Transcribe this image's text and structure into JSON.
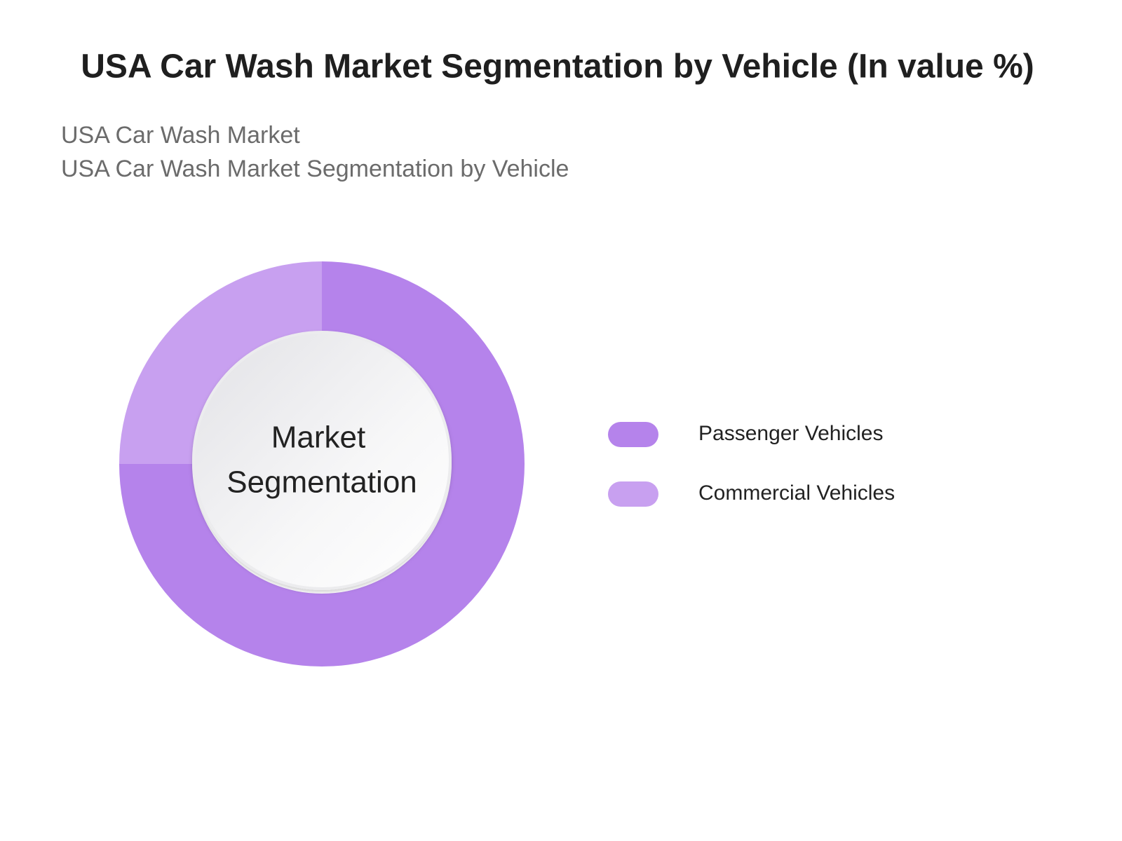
{
  "chart_data": {
    "type": "donut",
    "title": "USA Car Wash Market Segmentation by Vehicle (In value %)",
    "subtitles": [
      "USA Car Wash Market",
      "USA Car Wash Market Segmentation by Vehicle"
    ],
    "center_label": [
      "Market",
      "Segmentation"
    ],
    "categories": [
      "Passenger Vehicles",
      "Commercial Vehicles"
    ],
    "values": [
      75,
      25
    ],
    "colors": [
      "#b583eb",
      "#c8a0f0"
    ]
  }
}
